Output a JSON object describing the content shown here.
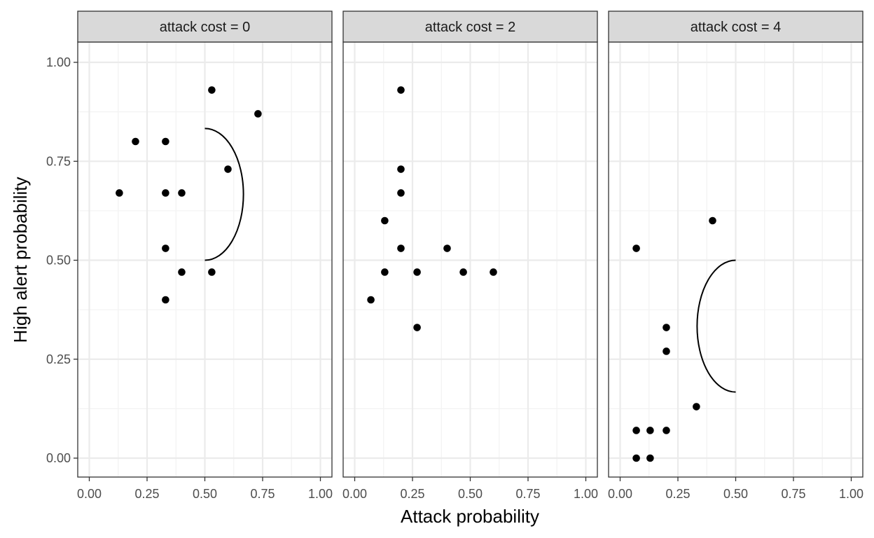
{
  "chart_data": {
    "type": "scatter",
    "xlabel": "Attack probability",
    "ylabel": "High alert probability",
    "xlim": [
      0,
      1
    ],
    "ylim": [
      0,
      1
    ],
    "x_ticks": [
      "0.00",
      "0.25",
      "0.50",
      "0.75",
      "1.00"
    ],
    "y_ticks": [
      "0.00",
      "0.25",
      "0.50",
      "0.75",
      "1.00"
    ],
    "grid": true,
    "colors": {
      "point": "#000000",
      "strip_fill": "#d9d9d9",
      "panel_border": "#333333",
      "grid_major": "#ebebeb",
      "grid_minor": "#f3f3f3",
      "tick_text": "#4d4d4d"
    },
    "panels": [
      {
        "label": "attack cost = 0",
        "points": [
          {
            "x": 0.13,
            "y": 0.67
          },
          {
            "x": 0.2,
            "y": 0.8
          },
          {
            "x": 0.33,
            "y": 0.8
          },
          {
            "x": 0.33,
            "y": 0.67
          },
          {
            "x": 0.33,
            "y": 0.53
          },
          {
            "x": 0.33,
            "y": 0.4
          },
          {
            "x": 0.4,
            "y": 0.67
          },
          {
            "x": 0.4,
            "y": 0.47
          },
          {
            "x": 0.53,
            "y": 0.93
          },
          {
            "x": 0.53,
            "y": 0.47
          },
          {
            "x": 0.6,
            "y": 0.73
          },
          {
            "x": 0.73,
            "y": 0.87
          }
        ],
        "curve": {
          "x0": 0.5,
          "y_bottom": 0.5,
          "y_top": 0.833,
          "x_peak": 0.667,
          "direction": "right"
        }
      },
      {
        "label": "attack cost = 2",
        "points": [
          {
            "x": 0.07,
            "y": 0.4
          },
          {
            "x": 0.13,
            "y": 0.6
          },
          {
            "x": 0.13,
            "y": 0.47
          },
          {
            "x": 0.2,
            "y": 0.93
          },
          {
            "x": 0.2,
            "y": 0.73
          },
          {
            "x": 0.2,
            "y": 0.67
          },
          {
            "x": 0.2,
            "y": 0.53
          },
          {
            "x": 0.27,
            "y": 0.47
          },
          {
            "x": 0.27,
            "y": 0.33
          },
          {
            "x": 0.4,
            "y": 0.53
          },
          {
            "x": 0.47,
            "y": 0.47
          },
          {
            "x": 0.6,
            "y": 0.47
          }
        ],
        "curve": null
      },
      {
        "label": "attack cost = 4",
        "points": [
          {
            "x": 0.07,
            "y": 0.53
          },
          {
            "x": 0.07,
            "y": 0.07
          },
          {
            "x": 0.07,
            "y": 0.0
          },
          {
            "x": 0.13,
            "y": 0.07
          },
          {
            "x": 0.13,
            "y": 0.0
          },
          {
            "x": 0.2,
            "y": 0.33
          },
          {
            "x": 0.2,
            "y": 0.27
          },
          {
            "x": 0.2,
            "y": 0.07
          },
          {
            "x": 0.33,
            "y": 0.13
          },
          {
            "x": 0.4,
            "y": 0.6
          }
        ],
        "curve": {
          "x0": 0.5,
          "y_bottom": 0.167,
          "y_top": 0.5,
          "x_peak": 0.333,
          "direction": "left"
        }
      }
    ]
  }
}
